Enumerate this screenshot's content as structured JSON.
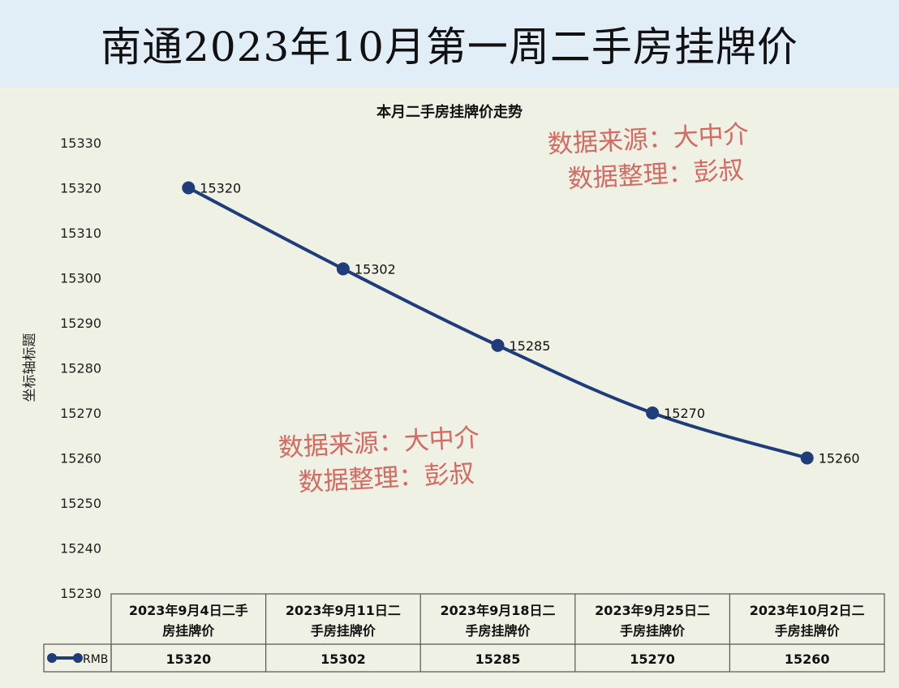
{
  "banner": {
    "title": "南通2023年10月第一周二手房挂牌价"
  },
  "chart_data": {
    "type": "line",
    "title": "本月二手房挂牌价走势",
    "ylabel": "坐标轴标题",
    "xlabel": "",
    "ylim": [
      15230,
      15330
    ],
    "ytick_step": 10,
    "grid": false,
    "legend": "bottom-left (data table)",
    "categories": [
      "2023年9月4日二手房挂牌价",
      "2023年9月11日二手房挂牌价",
      "2023年9月18日二手房挂牌价",
      "2023年9月25日二手房挂牌价",
      "2023年10月2日二手房挂牌价"
    ],
    "category_lines": [
      [
        "2023年9月4日二手",
        "房挂牌价"
      ],
      [
        "2023年9月11日二",
        "手房挂牌价"
      ],
      [
        "2023年9月18日二",
        "手房挂牌价"
      ],
      [
        "2023年9月25日二",
        "手房挂牌价"
      ],
      [
        "2023年10月2日二",
        "手房挂牌价"
      ]
    ],
    "series": [
      {
        "name": "RMB",
        "values": [
          15320,
          15302,
          15285,
          15270,
          15260
        ],
        "color": "#1f3d7a"
      }
    ],
    "data_labels": true
  },
  "watermarks": [
    {
      "line1": "数据来源：大中介",
      "line2": "数据整理：彭叔"
    },
    {
      "line1": "数据来源：大中介",
      "line2": "数据整理：彭叔"
    }
  ]
}
